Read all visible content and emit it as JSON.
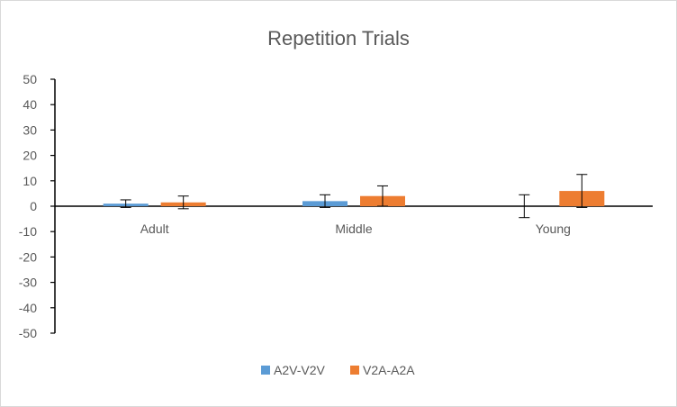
{
  "chart_data": {
    "type": "bar",
    "title": "Repetition Trials",
    "categories": [
      "Adult",
      "Middle",
      "Young"
    ],
    "series": [
      {
        "name": "A2V-V2V",
        "color": "#5b9bd5",
        "values": [
          1.0,
          2.0,
          0.0
        ],
        "error": [
          1.5,
          2.5,
          4.5
        ]
      },
      {
        "name": "V2A-A2A",
        "color": "#ed7d31",
        "values": [
          1.5,
          4.0,
          6.0
        ],
        "error": [
          2.5,
          4.0,
          6.5
        ]
      }
    ],
    "y_ticks": [
      "50",
      "40",
      "30",
      "20",
      "10",
      "0",
      "-10",
      "-20",
      "-30",
      "-40",
      "-50"
    ],
    "ylim": [
      -50,
      50
    ],
    "y_step": 10,
    "grid": false,
    "legend_position": "bottom",
    "xlabel": "",
    "ylabel": ""
  }
}
